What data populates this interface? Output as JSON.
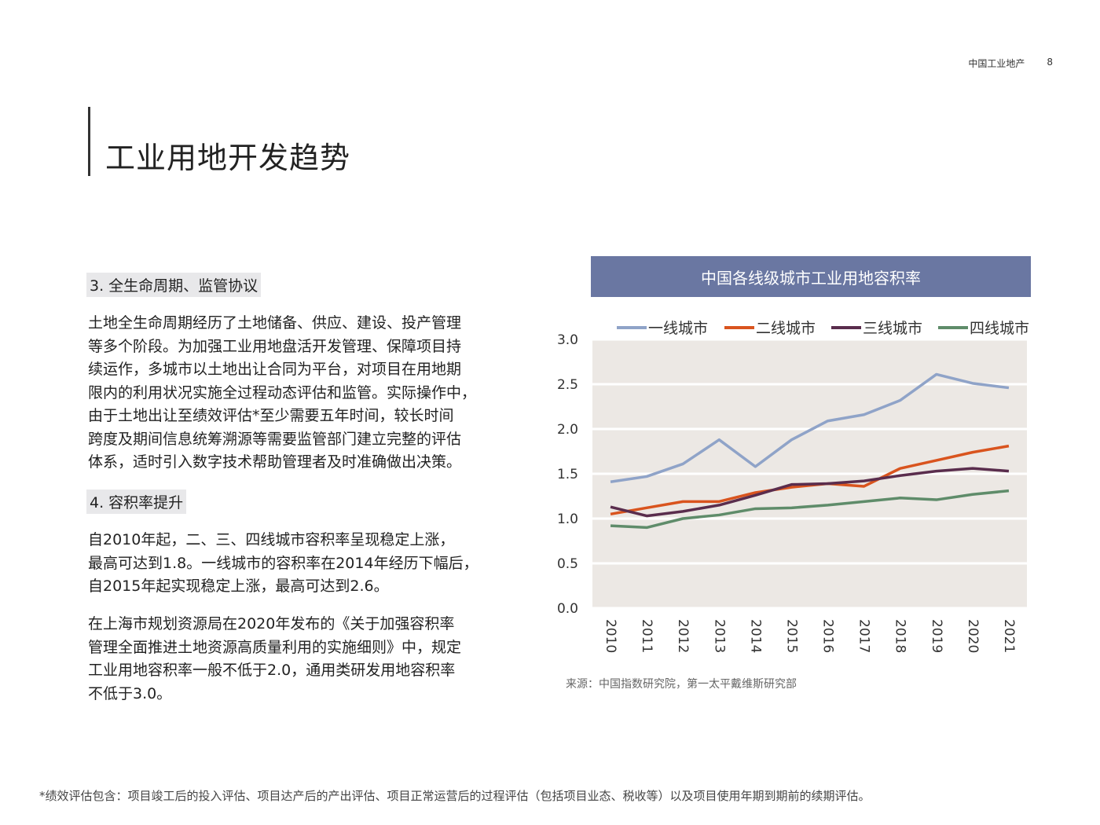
{
  "header": {
    "section": "中国工业地产",
    "page_number": "8"
  },
  "page_title": "工业用地开发趋势",
  "sections": [
    {
      "heading": "3. 全生命周期、监管协议",
      "paragraphs": [
        "土地全生命周期经历了土地储备、供应、建设、投产管理\n等多个阶段。为加强工业用地盘活开发管理、保障项目持\n续运作，多城市以土地出让合同为平台，对项目在用地期\n限内的利用状况实施全过程动态评估和监管。实际操作中，\n由于土地出让至绩效评估*至少需要五年时间，较长时间\n跨度及期间信息统筹溯源等需要监管部门建立完整的评估\n体系，适时引入数字技术帮助管理者及时准确做出决策。"
      ]
    },
    {
      "heading": "4. 容积率提升",
      "paragraphs": [
        "自2010年起，二、三、四线城市容积率呈现稳定上涨，\n最高可达到1.8。一线城市的容积率在2014年经历下幅后，\n自2015年起实现稳定上涨，最高可达到2.6。",
        "在上海市规划资源局在2020年发布的《关于加强容积率\n管理全面推进土地资源高质量利用的实施细则》中，规定\n工业用地容积率一般不低于2.0，通用类研发用地容积率\n不低于3.0。"
      ]
    }
  ],
  "chart_data": {
    "type": "line",
    "title": "中国各线级城市工业用地容积率",
    "categories": [
      "2010",
      "2011",
      "2012",
      "2013",
      "2014",
      "2015",
      "2016",
      "2017",
      "2018",
      "2019",
      "2020",
      "2021"
    ],
    "series": [
      {
        "name": "一线城市",
        "color": "#8fa3c8",
        "values": [
          1.41,
          1.47,
          1.61,
          1.88,
          1.58,
          1.88,
          2.09,
          2.16,
          2.32,
          2.61,
          2.51,
          2.46
        ]
      },
      {
        "name": "二线城市",
        "color": "#d9541e",
        "values": [
          1.05,
          1.12,
          1.19,
          1.19,
          1.29,
          1.35,
          1.39,
          1.36,
          1.56,
          1.65,
          1.74,
          1.81
        ]
      },
      {
        "name": "三线城市",
        "color": "#5a2d4d",
        "values": [
          1.13,
          1.03,
          1.08,
          1.15,
          1.26,
          1.38,
          1.39,
          1.42,
          1.48,
          1.53,
          1.56,
          1.53
        ]
      },
      {
        "name": "四线城市",
        "color": "#5f8c6a",
        "values": [
          0.92,
          0.9,
          1.0,
          1.04,
          1.11,
          1.12,
          1.15,
          1.19,
          1.23,
          1.21,
          1.27,
          1.31
        ]
      }
    ],
    "yticks": [
      "0.0",
      "0.5",
      "1.0",
      "1.5",
      "2.0",
      "2.5",
      "3.0"
    ],
    "ylim": [
      0,
      3
    ],
    "legend_position": "top",
    "grid": true,
    "plot_background": "#ece8e4"
  },
  "chart_source": "来源：中国指数研究院，第一太平戴维斯研究部",
  "footnote": "*绩效评估包含：项目竣工后的投入评估、项目达产后的产出评估、项目正常运营后的过程评估（包括项目业态、税收等）以及项目使用年期到期前的续期评估。"
}
